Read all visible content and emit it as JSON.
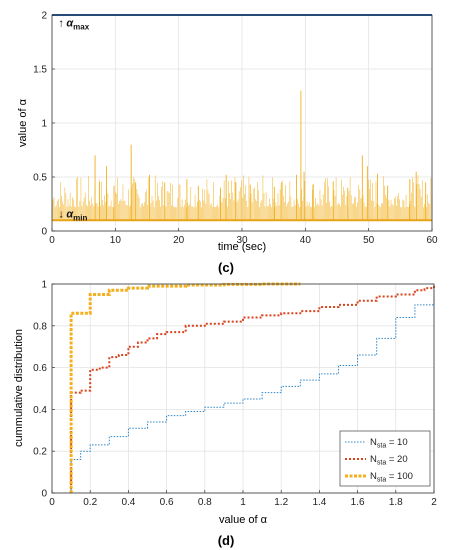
{
  "chart_data": [
    {
      "panel_label": "(c)",
      "type": "line",
      "title": "",
      "xlabel": "time (sec)",
      "ylabel": "value of α",
      "xlim": [
        0,
        60
      ],
      "ylim": [
        0,
        2
      ],
      "xticks": [
        "0",
        "10",
        "20",
        "30",
        "40",
        "50",
        "60"
      ],
      "yticks": [
        "0",
        "0.5",
        "1",
        "1.5",
        "2"
      ],
      "grid": true,
      "legend": "none",
      "annotations": [
        {
          "label": "α",
          "sub": "max",
          "arrow": "up",
          "x": 1.0,
          "y": 1.93
        },
        {
          "label": "α",
          "sub": "min",
          "arrow": "down",
          "x": 1.0,
          "y": 0.16
        }
      ],
      "series": [
        {
          "kind": "constant",
          "y": 2.0,
          "color": "#1f5fa8"
        },
        {
          "kind": "constant",
          "y": 0.1,
          "color": "#e8a317"
        },
        {
          "kind": "spikes",
          "color": "#f2b01e",
          "baseline": 0.1,
          "points": [
            [
              6.8,
              0.7
            ],
            [
              7.5,
              0.45
            ],
            [
              8.6,
              0.6
            ],
            [
              9.8,
              0.42
            ],
            [
              12.5,
              0.8
            ],
            [
              13.2,
              0.45
            ],
            [
              15.4,
              0.52
            ],
            [
              17.8,
              0.45
            ],
            [
              21.3,
              0.48
            ],
            [
              23.1,
              0.42
            ],
            [
              26.6,
              0.4
            ],
            [
              27.5,
              0.52
            ],
            [
              29.0,
              0.45
            ],
            [
              31.3,
              0.43
            ],
            [
              35.1,
              0.41
            ],
            [
              36.2,
              0.45
            ],
            [
              38.6,
              0.52
            ],
            [
              39.3,
              1.3
            ],
            [
              39.8,
              0.55
            ],
            [
              41.2,
              0.43
            ],
            [
              44.4,
              0.46
            ],
            [
              46.7,
              0.4
            ],
            [
              49.0,
              0.7
            ],
            [
              49.8,
              0.6
            ],
            [
              51.4,
              0.53
            ],
            [
              53.0,
              0.42
            ],
            [
              56.5,
              0.48
            ],
            [
              57.5,
              0.55
            ],
            [
              59.0,
              0.45
            ]
          ]
        }
      ]
    },
    {
      "panel_label": "(d)",
      "type": "line",
      "title": "",
      "xlabel": "value of α",
      "ylabel": "cummulative distribution",
      "xlim": [
        0,
        2
      ],
      "ylim": [
        0,
        1
      ],
      "xticks": [
        "0",
        "0.2",
        "0.4",
        "0.6",
        "0.8",
        "1",
        "1.2",
        "1.4",
        "1.6",
        "1.8",
        "2"
      ],
      "yticks": [
        "0",
        "0.2",
        "0.4",
        "0.6",
        "0.8",
        "1"
      ],
      "grid": true,
      "legend": "bottom-right",
      "series": [
        {
          "name": "N",
          "name_sub": "sta",
          "name_suffix": " = 10",
          "color": "#2e86c8",
          "dash": "1.5 1.5",
          "width": 1,
          "x": [
            0.1,
            0.1,
            0.15,
            0.2,
            0.3,
            0.4,
            0.5,
            0.6,
            0.7,
            0.8,
            0.9,
            1.0,
            1.1,
            1.2,
            1.3,
            1.4,
            1.5,
            1.6,
            1.7,
            1.8,
            1.9,
            2.0
          ],
          "y": [
            0,
            0.16,
            0.2,
            0.23,
            0.27,
            0.31,
            0.34,
            0.37,
            0.39,
            0.41,
            0.43,
            0.45,
            0.48,
            0.51,
            0.54,
            0.57,
            0.61,
            0.66,
            0.74,
            0.84,
            0.9,
            1.0
          ]
        },
        {
          "name": "N",
          "name_sub": "sta",
          "name_suffix": " = 20",
          "color": "#d9421b",
          "dash": "2 2",
          "width": 2,
          "x": [
            0.1,
            0.1,
            0.15,
            0.2,
            0.25,
            0.3,
            0.35,
            0.4,
            0.45,
            0.5,
            0.55,
            0.6,
            0.7,
            0.8,
            0.9,
            1.0,
            1.1,
            1.2,
            1.3,
            1.4,
            1.5,
            1.6,
            1.7,
            1.8,
            1.9,
            1.95,
            2.0
          ],
          "y": [
            0,
            0.48,
            0.49,
            0.59,
            0.6,
            0.65,
            0.66,
            0.7,
            0.72,
            0.74,
            0.76,
            0.77,
            0.8,
            0.81,
            0.82,
            0.84,
            0.85,
            0.86,
            0.87,
            0.89,
            0.9,
            0.92,
            0.94,
            0.95,
            0.97,
            0.98,
            0.99
          ]
        },
        {
          "name": "N",
          "name_sub": "sta",
          "name_suffix": " = 100",
          "color": "#f2b01e",
          "dash": "3 1.5",
          "width": 3,
          "x": [
            0.1,
            0.1,
            0.12,
            0.15,
            0.2,
            0.3,
            0.4,
            0.5,
            0.7,
            0.9,
            1.1,
            1.3
          ],
          "y": [
            0,
            0.86,
            0.86,
            0.86,
            0.95,
            0.97,
            0.98,
            0.99,
            0.995,
            0.998,
            1.0,
            1.0
          ]
        }
      ]
    }
  ]
}
